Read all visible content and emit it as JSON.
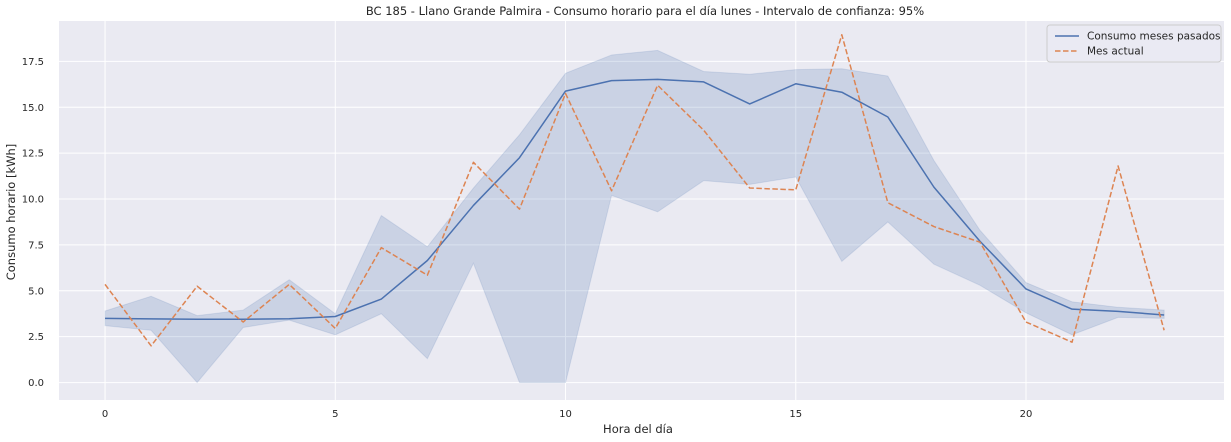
{
  "chart_data": {
    "type": "line",
    "title": "BC 185 - Llano Grande Palmira - Consumo horario para el día lunes - Intervalo de confianza: 95%",
    "xlabel": "Hora del día",
    "ylabel": "Consumo horario [kWh]",
    "x": [
      0,
      1,
      2,
      3,
      4,
      5,
      6,
      7,
      8,
      9,
      10,
      11,
      12,
      13,
      14,
      15,
      16,
      17,
      18,
      19,
      20,
      21,
      22,
      23
    ],
    "xlim": [
      -1,
      24.3
    ],
    "ylim": [
      -0.95,
      19.7
    ],
    "xticks": [
      0,
      5,
      10,
      15,
      20
    ],
    "xtick_labels": [
      "0",
      "5",
      "10",
      "15",
      "20"
    ],
    "yticks": [
      0,
      2.5,
      5,
      7.5,
      10,
      12.5,
      15,
      17.5
    ],
    "ytick_labels": [
      "0.0",
      "2.5",
      "5.0",
      "7.5",
      "10.0",
      "12.5",
      "15.0",
      "17.5"
    ],
    "grid": true,
    "legend_position": "top-right",
    "series": [
      {
        "name": "Consumo meses pasados",
        "color": "#4c72b0",
        "style": "solid",
        "values": [
          3.5,
          3.47,
          3.45,
          3.45,
          3.48,
          3.6,
          4.55,
          6.65,
          9.65,
          12.25,
          15.88,
          16.45,
          16.52,
          16.38,
          15.18,
          16.28,
          15.82,
          14.47,
          10.65,
          7.7,
          5.1,
          4.0,
          3.88,
          3.68
        ]
      },
      {
        "name": "Mes actual",
        "color": "#dd8452",
        "style": "dashed",
        "values": [
          5.35,
          2.0,
          5.25,
          3.3,
          5.35,
          2.95,
          7.35,
          5.85,
          12.0,
          9.45,
          15.75,
          10.45,
          16.2,
          13.75,
          10.6,
          10.5,
          18.95,
          9.8,
          8.5,
          7.65,
          3.3,
          2.2,
          11.8,
          2.85
        ]
      }
    ],
    "confidence_band": {
      "series": "Consumo meses pasados",
      "color": "#4c72b0",
      "lower": [
        3.1,
        2.85,
        0.0,
        3.0,
        3.4,
        2.6,
        3.75,
        1.3,
        6.5,
        0.0,
        0.0,
        10.2,
        9.3,
        11.0,
        10.8,
        11.2,
        6.6,
        8.75,
        6.45,
        5.3,
        3.8,
        2.6,
        3.55,
        3.5
      ],
      "upper": [
        3.9,
        4.7,
        3.65,
        3.95,
        5.6,
        3.75,
        9.1,
        7.4,
        10.6,
        13.5,
        16.85,
        17.85,
        18.1,
        16.95,
        16.8,
        17.05,
        17.1,
        16.7,
        12.1,
        8.3,
        5.45,
        4.4,
        4.1,
        3.95
      ]
    }
  }
}
